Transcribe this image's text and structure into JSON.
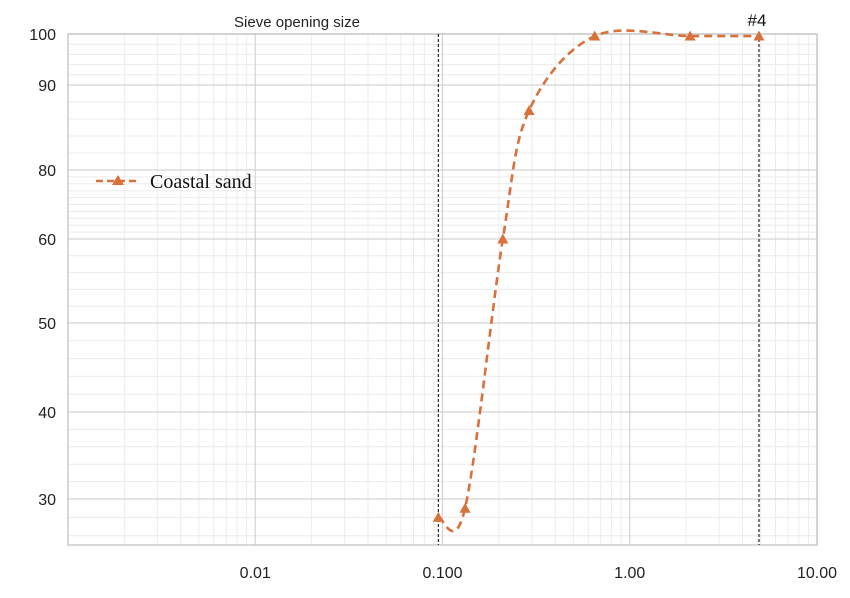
{
  "chart_data": {
    "type": "line",
    "title": "",
    "xlabel": "Sieve opening size",
    "ylabel": "",
    "x_scale": "log",
    "xlim": [
      0.001,
      10
    ],
    "x_ticks": [
      {
        "value": 0.01,
        "label": "0.01"
      },
      {
        "value": 0.1,
        "label": "0.100"
      },
      {
        "value": 1,
        "label": "1.00"
      },
      {
        "value": 10,
        "label": "10.00"
      }
    ],
    "y_scale": "nonlinear",
    "y_ticks": [
      {
        "value": 30,
        "label": "30"
      },
      {
        "value": 40,
        "label": "40"
      },
      {
        "value": 50,
        "label": "50"
      },
      {
        "value": 60,
        "label": "60"
      },
      {
        "value": 80,
        "label": "80"
      },
      {
        "value": 90,
        "label": "90"
      },
      {
        "value": 100,
        "label": "100"
      }
    ],
    "grid": true,
    "legend_position": "left",
    "series": [
      {
        "name": "Coastal sand",
        "color": "#D9713A",
        "line_style": "dashed",
        "marker": "triangle",
        "x": [
          0.095,
          0.132,
          0.21,
          0.29,
          0.65,
          2.1,
          4.9
        ],
        "y": [
          28,
          29,
          60,
          87,
          99.6,
          99.6,
          99.6
        ]
      }
    ],
    "reference_lines": [
      {
        "x": 0.095,
        "label": ""
      },
      {
        "x": 4.9,
        "label": "#4"
      }
    ]
  }
}
